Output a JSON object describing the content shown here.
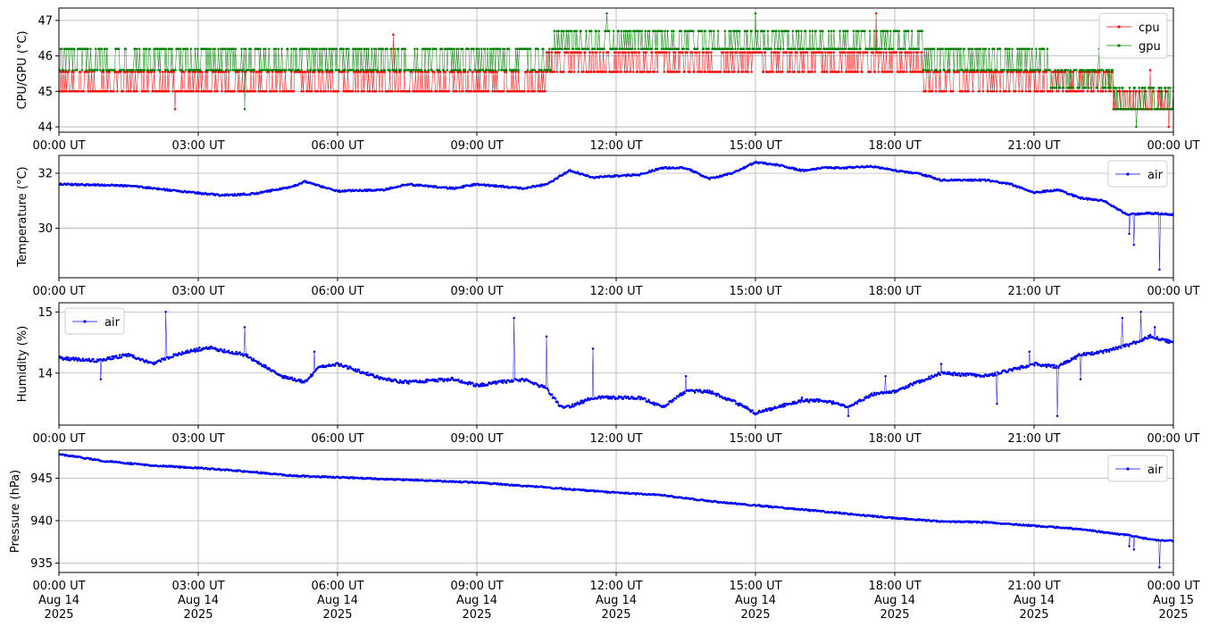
{
  "chart_data": [
    {
      "type": "line",
      "ylabel": "CPU/GPU (°C)",
      "ylim": [
        43.85,
        47.35
      ],
      "yticks": [
        44,
        45,
        46,
        47
      ],
      "xlim_hours": [
        0,
        24
      ],
      "xticks": [
        "00:00 UT",
        "03:00 UT",
        "06:00 UT",
        "09:00 UT",
        "12:00 UT",
        "15:00 UT",
        "18:00 UT",
        "21:00 UT",
        "00:00 UT"
      ],
      "grid": true,
      "legend_position": "top-right",
      "series": [
        {
          "name": "cpu",
          "color": "#ff0000",
          "levels": [
            45.0,
            45.55,
            46.1,
            46.65
          ],
          "segments": [
            {
              "x_start": 0,
              "x_end": 10.5,
              "base": 45.0,
              "alt": 45.55
            },
            {
              "x_start": 10.5,
              "x_end": 14.8,
              "base": 45.55,
              "alt": 46.1
            },
            {
              "x_start": 14.8,
              "x_end": 18.6,
              "base": 46.1,
              "alt": 45.55
            },
            {
              "x_start": 18.6,
              "x_end": 21.3,
              "base": 45.55,
              "alt": 45.0
            },
            {
              "x_start": 21.3,
              "x_end": 22.7,
              "base": 45.0,
              "alt": 45.55
            },
            {
              "x_start": 22.7,
              "x_end": 24,
              "base": 44.5,
              "alt": 45.0
            }
          ],
          "spikes": [
            [
              2.5,
              44.5
            ],
            [
              7.2,
              46.6
            ],
            [
              17.6,
              47.2
            ],
            [
              23.5,
              45.6
            ],
            [
              23.9,
              44.0
            ]
          ]
        },
        {
          "name": "gpu",
          "color": "#008000",
          "levels": [
            45.1,
            45.6,
            46.2,
            46.7
          ],
          "segments": [
            {
              "x_start": 0,
              "x_end": 10.6,
              "base": 45.6,
              "alt": 46.2
            },
            {
              "x_start": 10.6,
              "x_end": 14.8,
              "base": 46.2,
              "alt": 46.7
            },
            {
              "x_start": 14.8,
              "x_end": 18.6,
              "base": 46.2,
              "alt": 46.7
            },
            {
              "x_start": 18.6,
              "x_end": 21.3,
              "base": 45.6,
              "alt": 46.2
            },
            {
              "x_start": 21.3,
              "x_end": 22.7,
              "base": 45.1,
              "alt": 45.6
            },
            {
              "x_start": 22.7,
              "x_end": 24,
              "base": 44.5,
              "alt": 45.1
            }
          ],
          "spikes": [
            [
              4.0,
              44.5
            ],
            [
              11.8,
              47.2
            ],
            [
              15.0,
              47.2
            ],
            [
              22.4,
              46.2
            ],
            [
              23.2,
              44.0
            ]
          ]
        }
      ]
    },
    {
      "type": "line",
      "ylabel": "Temperature (°C)",
      "ylim": [
        28.2,
        32.65
      ],
      "yticks": [
        30,
        32
      ],
      "xlim_hours": [
        0,
        24
      ],
      "xticks": [
        "00:00 UT",
        "03:00 UT",
        "06:00 UT",
        "09:00 UT",
        "12:00 UT",
        "15:00 UT",
        "18:00 UT",
        "21:00 UT",
        "00:00 UT"
      ],
      "grid": true,
      "legend_position": "top-right",
      "series": [
        {
          "name": "air",
          "color": "#0000ff",
          "noise": 0.03,
          "x": [
            0,
            1.5,
            2.3,
            3.5,
            4.2,
            5.0,
            5.3,
            6.0,
            7.0,
            7.5,
            8.5,
            9.0,
            10.0,
            10.5,
            11.0,
            11.5,
            12.0,
            12.5,
            13.0,
            13.5,
            14.0,
            14.5,
            15.0,
            15.5,
            16.0,
            16.5,
            17.0,
            17.5,
            18.0,
            18.5,
            19.0,
            20.0,
            20.5,
            21.0,
            21.5,
            22.0,
            22.5,
            23.0,
            23.5,
            24.0
          ],
          "y": [
            31.6,
            31.55,
            31.4,
            31.2,
            31.25,
            31.5,
            31.7,
            31.35,
            31.4,
            31.6,
            31.45,
            31.6,
            31.45,
            31.6,
            32.1,
            31.85,
            31.9,
            31.95,
            32.2,
            32.2,
            31.8,
            32.0,
            32.4,
            32.3,
            32.1,
            32.2,
            32.2,
            32.25,
            32.1,
            32.0,
            31.75,
            31.75,
            31.6,
            31.3,
            31.4,
            31.1,
            31.0,
            30.5,
            30.55,
            30.5
          ],
          "spikes": [
            [
              23.05,
              29.8
            ],
            [
              23.15,
              29.4
            ],
            [
              23.7,
              28.5
            ]
          ]
        }
      ]
    },
    {
      "type": "line",
      "ylabel": "Humidity (%)",
      "ylim": [
        13.15,
        15.15
      ],
      "yticks": [
        14,
        15
      ],
      "xlim_hours": [
        0,
        24
      ],
      "xticks": [
        "00:00 UT",
        "03:00 UT",
        "06:00 UT",
        "09:00 UT",
        "12:00 UT",
        "15:00 UT",
        "18:00 UT",
        "21:00 UT",
        "00:00 UT"
      ],
      "grid": true,
      "legend_position": "top-left",
      "series": [
        {
          "name": "air",
          "color": "#0000ff",
          "noise": 0.025,
          "x": [
            0,
            0.8,
            1.5,
            2.0,
            2.5,
            3.2,
            4.0,
            4.8,
            5.3,
            5.6,
            6.0,
            7.0,
            7.5,
            8.5,
            9.0,
            9.5,
            10.0,
            10.5,
            10.8,
            11.0,
            11.5,
            12.0,
            12.5,
            13.0,
            13.5,
            14.0,
            14.5,
            15.0,
            15.5,
            16.0,
            16.5,
            17.0,
            17.5,
            18.0,
            18.5,
            19.0,
            20.0,
            20.5,
            21.0,
            21.5,
            22.0,
            22.5,
            23.0,
            23.5,
            24.0
          ],
          "y": [
            14.25,
            14.2,
            14.3,
            14.15,
            14.3,
            14.42,
            14.3,
            13.95,
            13.85,
            14.1,
            14.15,
            13.9,
            13.85,
            13.9,
            13.8,
            13.85,
            13.9,
            13.75,
            13.45,
            13.45,
            13.6,
            13.6,
            13.6,
            13.45,
            13.7,
            13.7,
            13.55,
            13.35,
            13.45,
            13.55,
            13.55,
            13.45,
            13.65,
            13.7,
            13.85,
            14.0,
            13.95,
            14.05,
            14.15,
            14.1,
            14.3,
            14.35,
            14.45,
            14.6,
            14.5
          ],
          "spikes": [
            [
              0.9,
              13.9
            ],
            [
              2.3,
              15.0
            ],
            [
              4.0,
              14.75
            ],
            [
              5.5,
              14.35
            ],
            [
              9.8,
              14.9
            ],
            [
              10.5,
              14.6
            ],
            [
              11.5,
              14.4
            ],
            [
              13.5,
              13.95
            ],
            [
              16.0,
              13.6
            ],
            [
              17.0,
              13.3
            ],
            [
              17.8,
              13.95
            ],
            [
              19.0,
              14.15
            ],
            [
              20.2,
              13.5
            ],
            [
              20.9,
              14.35
            ],
            [
              21.5,
              13.3
            ],
            [
              22.0,
              13.9
            ],
            [
              22.9,
              14.9
            ],
            [
              23.3,
              15.0
            ],
            [
              23.6,
              14.75
            ]
          ]
        }
      ]
    },
    {
      "type": "line",
      "ylabel": "Pressure (hPa)",
      "ylim": [
        933.9,
        948.3
      ],
      "yticks": [
        935,
        940,
        945
      ],
      "xlim_hours": [
        0,
        24
      ],
      "xticks": [
        "00:00 UT\nAug 14\n2025",
        "03:00 UT\nAug 14\n2025",
        "06:00 UT\nAug 14\n2025",
        "09:00 UT\nAug 14\n2025",
        "12:00 UT\nAug 14\n2025",
        "15:00 UT\nAug 14\n2025",
        "18:00 UT\nAug 14\n2025",
        "21:00 UT\nAug 14\n2025",
        "00:00 UT\nAug 15\n2025"
      ],
      "grid": true,
      "legend_position": "top-right",
      "series": [
        {
          "name": "air",
          "color": "#0000ff",
          "noise": 0.08,
          "x": [
            0,
            1.0,
            2.0,
            3.0,
            4.0,
            5.0,
            6.0,
            7.0,
            8.0,
            9.0,
            10.0,
            11.0,
            12.0,
            13.0,
            14.0,
            15.0,
            16.0,
            17.0,
            18.0,
            19.0,
            20.0,
            21.0,
            22.0,
            23.0,
            23.5,
            24.0
          ],
          "y": [
            947.8,
            947.0,
            946.5,
            946.2,
            945.8,
            945.3,
            945.1,
            944.9,
            944.7,
            944.5,
            944.1,
            943.7,
            943.3,
            943.0,
            942.3,
            941.8,
            941.3,
            940.8,
            940.3,
            939.9,
            939.8,
            939.4,
            939.0,
            938.3,
            937.8,
            937.6
          ],
          "spikes": [
            [
              23.05,
              937.0
            ],
            [
              23.15,
              936.6
            ],
            [
              23.7,
              934.5
            ]
          ]
        }
      ]
    }
  ]
}
